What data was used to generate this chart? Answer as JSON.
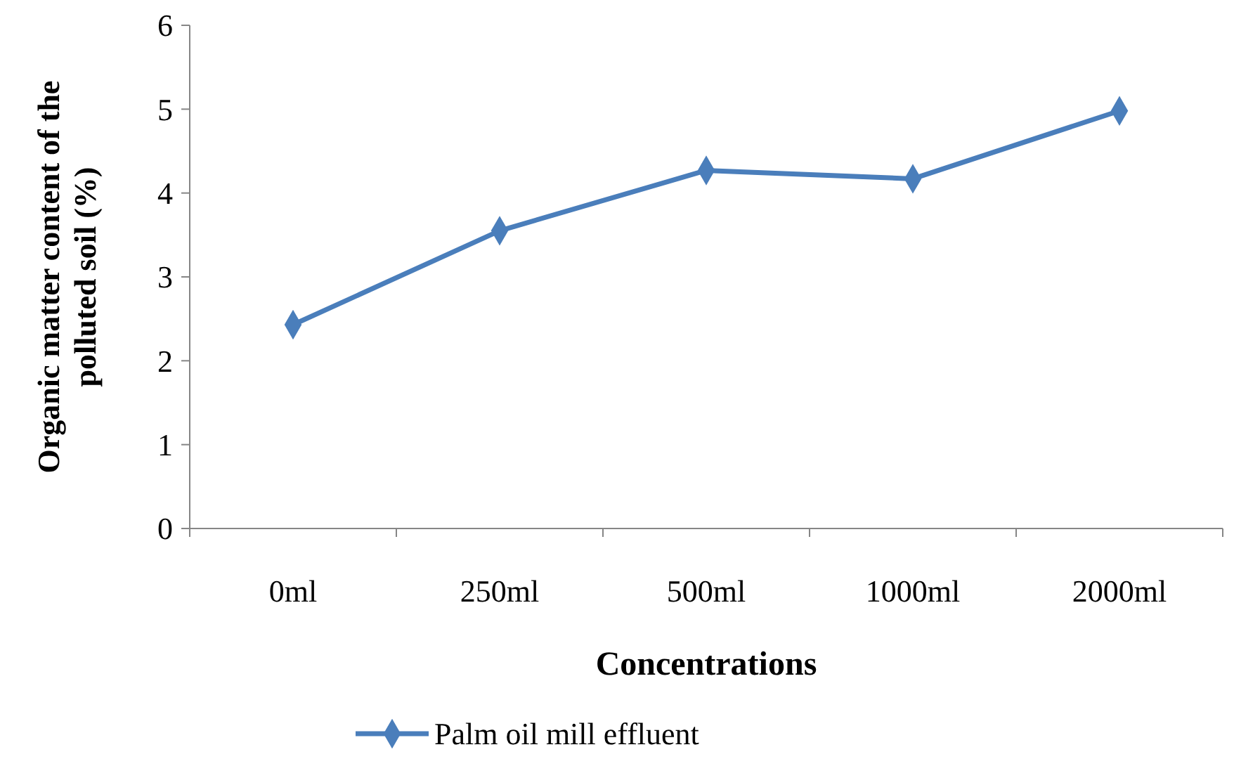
{
  "chart_data": {
    "type": "line",
    "xlabel": "Concentrations",
    "ylabel": "Organic matter content of the polluted soil (%)",
    "categories": [
      "0ml",
      "250ml",
      "500ml",
      "1000ml",
      "2000ml"
    ],
    "series": [
      {
        "name": "Palm oil mill effluent",
        "color": "#4a7ebb",
        "values": [
          2.43,
          3.55,
          4.27,
          4.17,
          4.98
        ]
      }
    ],
    "ylim": [
      0,
      6
    ],
    "yticks": [
      0,
      1,
      2,
      3,
      4,
      5,
      6
    ],
    "grid": false,
    "legend": "bottom",
    "marker": "diamond",
    "line_style": "solid"
  }
}
